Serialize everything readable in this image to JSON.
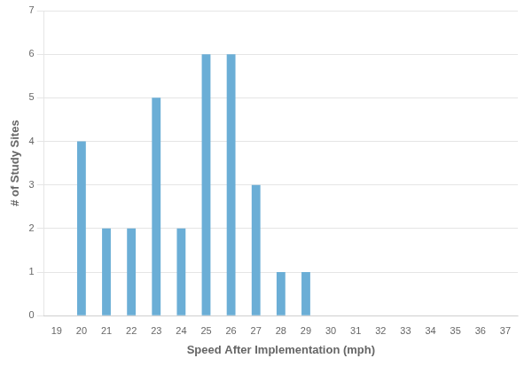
{
  "chart_data": {
    "type": "bar",
    "categories": [
      19,
      20,
      21,
      22,
      23,
      24,
      25,
      26,
      27,
      28,
      29,
      30,
      31,
      32,
      33,
      34,
      35,
      36,
      37
    ],
    "values": [
      0,
      4,
      2,
      2,
      5,
      2,
      6,
      6,
      3,
      1,
      1,
      0,
      0,
      0,
      0,
      0,
      0,
      0,
      0
    ],
    "color": "#6baed6",
    "xlabel": "Speed After Implementation (mph)",
    "ylabel": "# of Study Sites",
    "ylim": [
      0,
      7
    ],
    "yticks": [
      0,
      1,
      2,
      3,
      4,
      5,
      6,
      7
    ],
    "grid": true
  }
}
